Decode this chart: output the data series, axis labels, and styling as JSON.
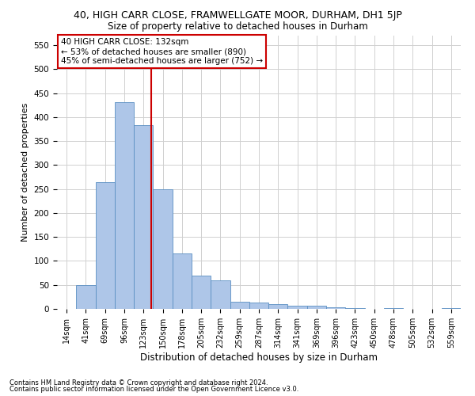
{
  "title1": "40, HIGH CARR CLOSE, FRAMWELLGATE MOOR, DURHAM, DH1 5JP",
  "title2": "Size of property relative to detached houses in Durham",
  "xlabel": "Distribution of detached houses by size in Durham",
  "ylabel": "Number of detached properties",
  "annotation_line1": "40 HIGH CARR CLOSE: 132sqm",
  "annotation_line2": "← 53% of detached houses are smaller (890)",
  "annotation_line3": "45% of semi-detached houses are larger (752) →",
  "footer1": "Contains HM Land Registry data © Crown copyright and database right 2024.",
  "footer2": "Contains public sector information licensed under the Open Government Licence v3.0.",
  "bin_labels": [
    "14sqm",
    "41sqm",
    "69sqm",
    "96sqm",
    "123sqm",
    "150sqm",
    "178sqm",
    "205sqm",
    "232sqm",
    "259sqm",
    "287sqm",
    "314sqm",
    "341sqm",
    "369sqm",
    "396sqm",
    "423sqm",
    "450sqm",
    "478sqm",
    "505sqm",
    "532sqm",
    "559sqm"
  ],
  "bar_values": [
    0,
    50,
    265,
    432,
    383,
    250,
    115,
    70,
    60,
    15,
    13,
    10,
    7,
    6,
    4,
    2,
    0,
    2,
    0,
    0,
    1
  ],
  "bar_color": "#aec6e8",
  "bar_edge_color": "#5a8fc2",
  "vline_color": "#cc0000",
  "vline_pos": 4.42,
  "ylim": [
    0,
    570
  ],
  "yticks": [
    0,
    50,
    100,
    150,
    200,
    250,
    300,
    350,
    400,
    450,
    500,
    550
  ],
  "background_color": "#ffffff",
  "grid_color": "#d0d0d0",
  "annotation_box_edge": "#cc0000",
  "title1_fontsize": 9,
  "title2_fontsize": 8.5,
  "ylabel_fontsize": 8,
  "xlabel_fontsize": 8.5
}
